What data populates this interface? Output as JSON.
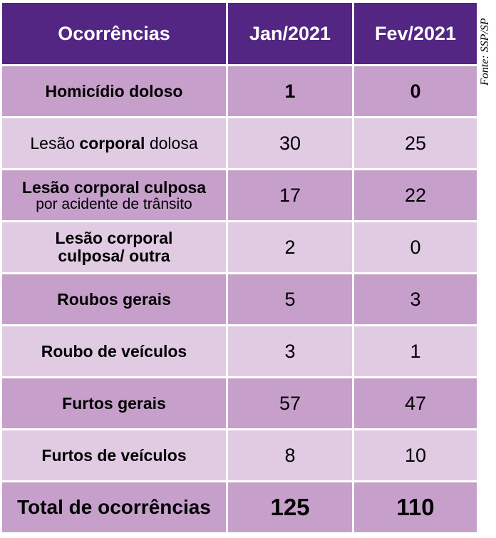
{
  "table": {
    "headers": [
      "Ocorrências",
      "Jan/2021",
      "Fev/2021"
    ],
    "rows": [
      {
        "label_parts": [
          {
            "text": "Homicídio doloso",
            "bold": true
          }
        ],
        "jan": "1",
        "fev": "0",
        "bold_values": true
      },
      {
        "label_parts": [
          {
            "text": "Lesão ",
            "bold": false
          },
          {
            "text": "corporal",
            "bold": true
          },
          {
            "text": " dolosa",
            "bold": false
          }
        ],
        "jan": "30",
        "fev": "25"
      },
      {
        "label_line1": "Lesão corporal culposa",
        "label_line2": "por acidente de trânsito",
        "jan": "17",
        "fev": "22"
      },
      {
        "label_line1": "Lesão corporal",
        "label_line2": "culposa/ outra",
        "jan": "2",
        "fev": "0"
      },
      {
        "label": "Roubos gerais",
        "jan": "5",
        "fev": "3"
      },
      {
        "label": "Roubo de veículos",
        "jan": "3",
        "fev": "1"
      },
      {
        "label": "Furtos gerais",
        "jan": "57",
        "fev": "47"
      },
      {
        "label": "Furtos de veículos",
        "jan": "8",
        "fev": "10"
      }
    ],
    "total": {
      "label": "Total de ocorrências",
      "jan": "125",
      "fev": "110"
    }
  },
  "source": "Fonte: SSP/SP",
  "colors": {
    "header": "#532683",
    "row_dark": "#c6a0cb",
    "row_light": "#e0cbe3"
  }
}
